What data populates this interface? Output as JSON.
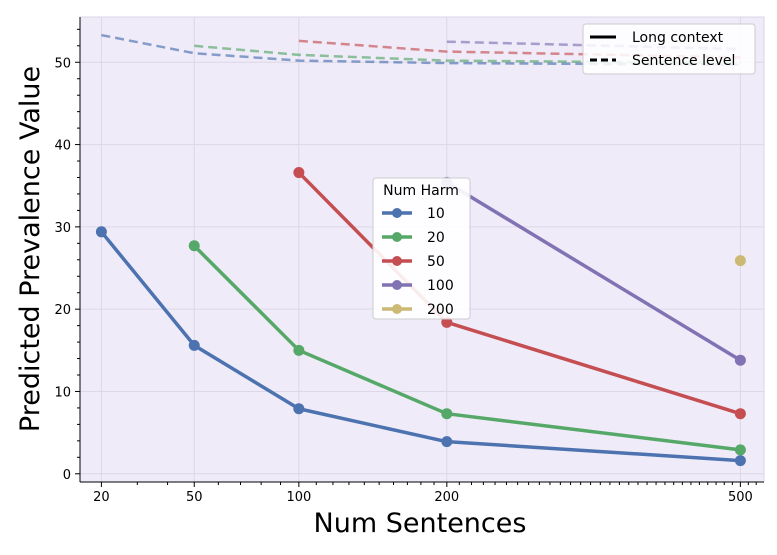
{
  "chart_data": {
    "type": "line",
    "xlabel": "Num Sentences",
    "ylabel": "Predicted Prevalence Value",
    "x_scale": "sqrt",
    "xlim": [
      15,
      530
    ],
    "ylim": [
      -1,
      55.5
    ],
    "x_ticks": [
      20,
      50,
      100,
      200,
      500
    ],
    "y_ticks": [
      0,
      10,
      20,
      30,
      40,
      50
    ],
    "grid": true,
    "background": "#efebf8",
    "group_legend_title": "Num Harm",
    "group_legend_position": "center",
    "style_legend_position": "top-right",
    "style_legend": [
      {
        "label": "Long context",
        "dash": "solid"
      },
      {
        "label": "Sentence level",
        "dash": "dashed"
      }
    ],
    "series": [
      {
        "name": "10",
        "color": "#4c72b0",
        "long_context": {
          "x": [
            20,
            50,
            100,
            200,
            500
          ],
          "y": [
            29.4,
            15.6,
            7.9,
            3.9,
            1.6
          ]
        },
        "sentence_level": {
          "x": [
            20,
            50,
            100,
            200,
            500
          ],
          "y": [
            53.3,
            51.1,
            50.2,
            49.9,
            49.7
          ]
        }
      },
      {
        "name": "20",
        "color": "#55a868",
        "long_context": {
          "x": [
            50,
            100,
            200,
            500
          ],
          "y": [
            27.7,
            15.0,
            7.3,
            2.9
          ]
        },
        "sentence_level": {
          "x": [
            50,
            100,
            200,
            500
          ],
          "y": [
            52.0,
            50.9,
            50.2,
            49.9
          ]
        }
      },
      {
        "name": "50",
        "color": "#c44e52",
        "long_context": {
          "x": [
            100,
            200,
            500
          ],
          "y": [
            36.6,
            18.4,
            7.3
          ]
        },
        "sentence_level": {
          "x": [
            100,
            200,
            500
          ],
          "y": [
            52.6,
            51.3,
            50.6
          ]
        }
      },
      {
        "name": "100",
        "color": "#8172b3",
        "long_context": {
          "x": [
            200,
            500
          ],
          "y": [
            35.4,
            13.8
          ]
        },
        "sentence_level": {
          "x": [
            200,
            500
          ],
          "y": [
            52.5,
            51.6
          ]
        }
      },
      {
        "name": "200",
        "color": "#ccb974",
        "long_context": {
          "x": [
            500
          ],
          "y": [
            25.9
          ]
        },
        "sentence_level": {
          "x": [
            500
          ],
          "y": [
            51.4
          ]
        }
      }
    ]
  }
}
